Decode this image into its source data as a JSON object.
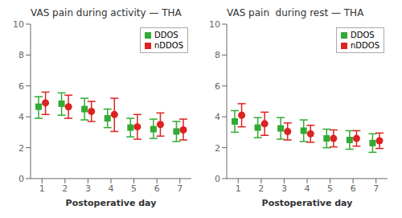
{
  "chart_data": [
    {
      "type": "scatter",
      "title": "VAS pain during activity — THA",
      "xlabel": "Postoperative day",
      "x": [
        1,
        2,
        3,
        4,
        5,
        6,
        7
      ],
      "xlim": [
        0.5,
        7.5
      ],
      "xticks": [
        1,
        2,
        3,
        4,
        5,
        6,
        7
      ],
      "ylim": [
        0,
        10
      ],
      "yticks": [
        0,
        2,
        4,
        6,
        8,
        10
      ],
      "grid": false,
      "legend": "upper right",
      "series": [
        {
          "name": "DDOS",
          "color": "#33aa33",
          "marker": "square",
          "values": [
            4.65,
            4.85,
            4.5,
            3.9,
            3.3,
            3.2,
            3.05
          ],
          "lo": [
            3.9,
            4.1,
            3.8,
            3.3,
            2.7,
            2.6,
            2.4
          ],
          "hi": [
            5.3,
            5.55,
            5.2,
            4.5,
            3.9,
            3.85,
            3.7
          ]
        },
        {
          "name": "nDDOS",
          "color": "#dd2222",
          "marker": "circle",
          "values": [
            4.9,
            4.65,
            4.35,
            4.15,
            3.35,
            3.5,
            3.15
          ],
          "lo": [
            4.15,
            3.9,
            3.7,
            3.05,
            2.55,
            2.75,
            2.5
          ],
          "hi": [
            5.6,
            5.4,
            5.0,
            5.2,
            4.15,
            4.25,
            3.85
          ]
        }
      ]
    },
    {
      "type": "scatter",
      "title": "VAS pain  during rest — THA",
      "xlabel": "Postoperative day",
      "x": [
        1,
        2,
        3,
        4,
        5,
        6,
        7
      ],
      "xlim": [
        0.5,
        7.5
      ],
      "xticks": [
        1,
        2,
        3,
        4,
        5,
        6,
        7
      ],
      "ylim": [
        0,
        10
      ],
      "yticks": [
        0,
        2,
        4,
        6,
        8,
        10
      ],
      "grid": false,
      "legend": "upper right",
      "series": [
        {
          "name": "DDOS",
          "color": "#33aa33",
          "marker": "square",
          "values": [
            3.7,
            3.3,
            3.25,
            3.1,
            2.6,
            2.5,
            2.3
          ],
          "lo": [
            3.0,
            2.65,
            2.55,
            2.4,
            2.0,
            1.9,
            1.7
          ],
          "hi": [
            4.4,
            3.95,
            3.95,
            3.8,
            3.2,
            3.1,
            2.9
          ]
        },
        {
          "name": "nDDOS",
          "color": "#dd2222",
          "marker": "circle",
          "values": [
            4.1,
            3.55,
            3.05,
            2.9,
            2.6,
            2.6,
            2.45
          ],
          "lo": [
            3.35,
            2.8,
            2.5,
            2.35,
            2.05,
            2.1,
            1.95
          ],
          "hi": [
            4.85,
            4.3,
            3.6,
            3.45,
            3.15,
            3.1,
            2.95
          ]
        }
      ]
    }
  ]
}
